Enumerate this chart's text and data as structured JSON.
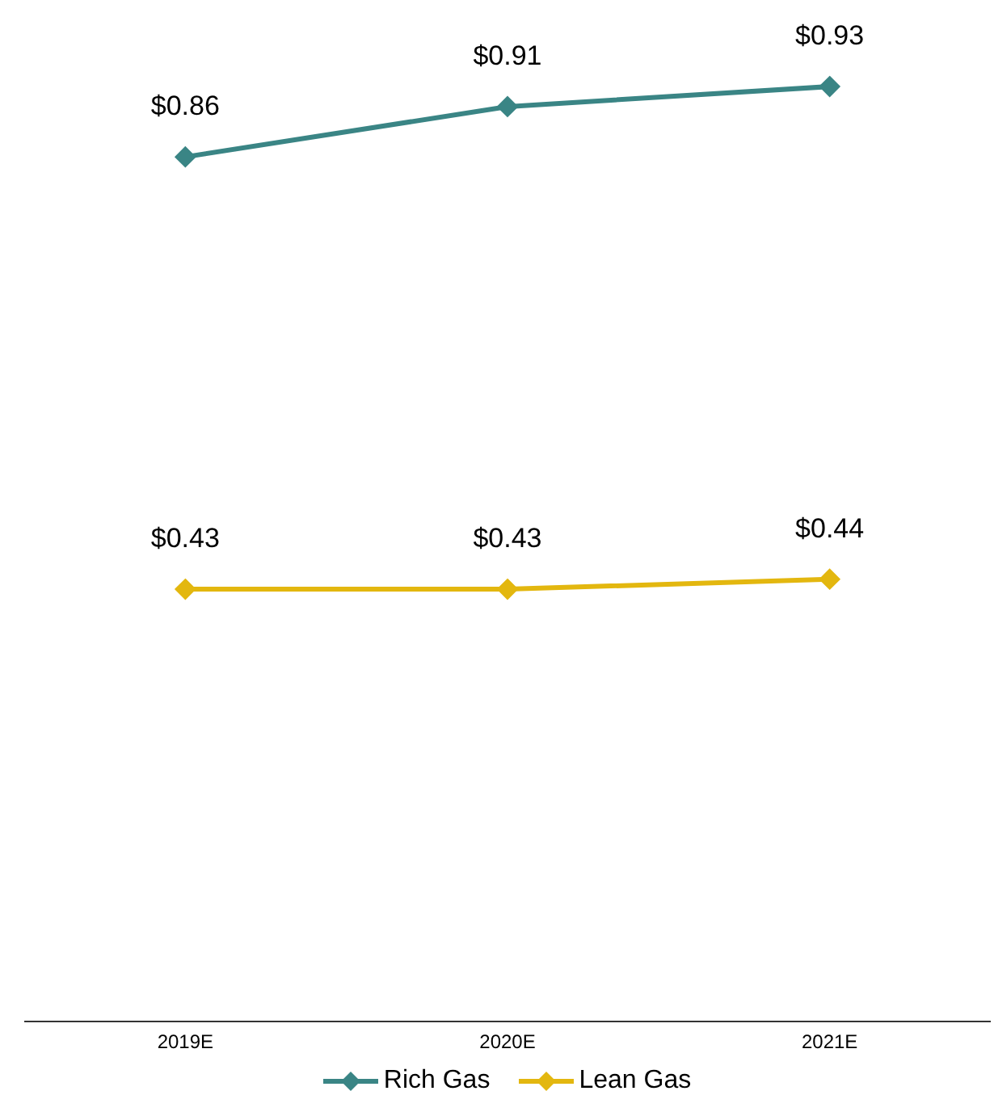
{
  "chart_data": {
    "type": "line",
    "categories": [
      "2019E",
      "2020E",
      "2021E"
    ],
    "marker": "diamond",
    "legend": "bottom",
    "grid": false,
    "series": [
      {
        "name": "Rich Gas",
        "color": "#3a8585",
        "values": [
          0.86,
          0.91,
          0.93
        ],
        "value_labels": [
          "$0.86",
          "$0.91",
          "$0.93"
        ]
      },
      {
        "name": "Lean Gas",
        "color": "#e3b70f",
        "values": [
          0.43,
          0.43,
          0.44
        ],
        "value_labels": [
          "$0.43",
          "$0.43",
          "$0.44"
        ]
      }
    ]
  }
}
